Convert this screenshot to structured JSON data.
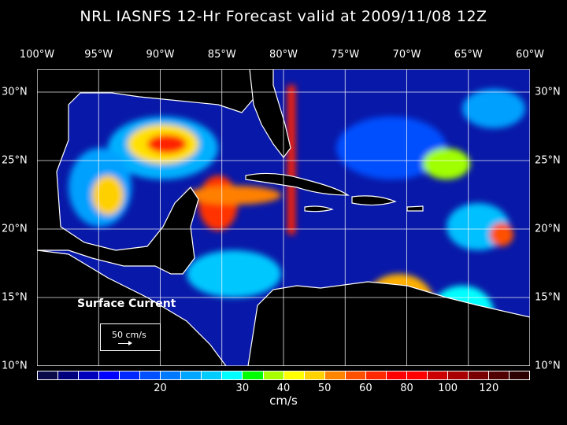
{
  "title": "NRL IASNFS  12-Hr Forecast valid at 2009/11/08 12Z",
  "lon_labels": [
    "100°W",
    "95°W",
    "90°W",
    "85°W",
    "80°W",
    "75°W",
    "70°W",
    "65°W",
    "60°W"
  ],
  "lat_labels": [
    "30°N",
    "25°N",
    "20°N",
    "15°N",
    "10°N"
  ],
  "field_label": "Surface Current",
  "reference_vector": {
    "label": "50 cm/s",
    "value": 50
  },
  "colorbar": {
    "units": "cm/s",
    "ticks": [
      {
        "label": "20",
        "boundary": 6
      },
      {
        "label": "30",
        "boundary": 10
      },
      {
        "label": "40",
        "boundary": 12
      },
      {
        "label": "50",
        "boundary": 14
      },
      {
        "label": "60",
        "boundary": 16
      },
      {
        "label": "80",
        "boundary": 18
      },
      {
        "label": "100",
        "boundary": 20
      },
      {
        "label": "120",
        "boundary": 22
      }
    ],
    "colors": [
      "#0a0a4a",
      "#00007c",
      "#0000bc",
      "#0000ff",
      "#0028ff",
      "#0050ff",
      "#0078ff",
      "#00a6ff",
      "#00ccff",
      "#00ffff",
      "#00ff00",
      "#a8ff00",
      "#ffff00",
      "#ffd200",
      "#ff8400",
      "#ff5000",
      "#ff2800",
      "#ff0000",
      "#ff0000",
      "#cc0000",
      "#a80000",
      "#780000",
      "#500000",
      "#2c0000"
    ]
  }
}
